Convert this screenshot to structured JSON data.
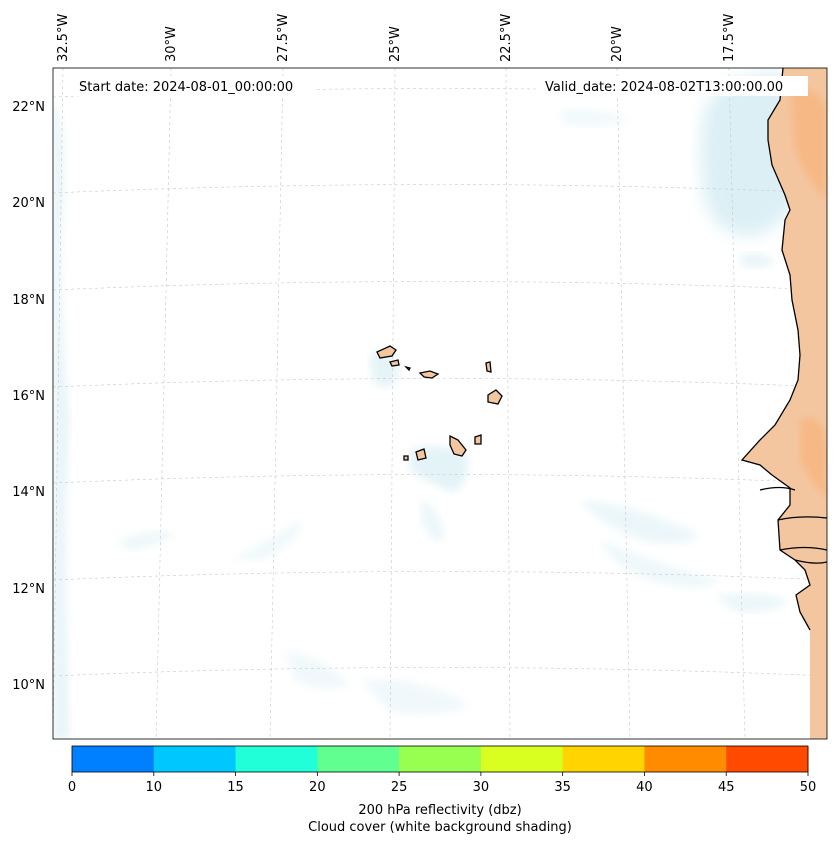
{
  "header": {
    "start_date": "Start date: 2024-08-01_00:00:00",
    "valid_date": "Valid_date: 2024-08-02T13:00:00.00"
  },
  "map": {
    "lon_labels": [
      "32.5°W",
      "30°W",
      "27.5°W",
      "25°W",
      "22.5°W",
      "20°W",
      "17.5°W"
    ],
    "lat_labels": [
      "22°N",
      "20°N",
      "18°N",
      "16°N",
      "14°N",
      "12°N",
      "10°N"
    ],
    "gridlines": "dashed",
    "region": "Cabo Verde and West African coast",
    "colors": {
      "land": "#f4c6a0",
      "cloud": "#d9eef5",
      "coast": "#000000"
    }
  },
  "colorbar": {
    "ticks": [
      "0",
      "10",
      "15",
      "20",
      "25",
      "30",
      "35",
      "40",
      "45",
      "50"
    ],
    "colors": [
      "#0080ff",
      "#00c8ff",
      "#20ffd8",
      "#60ff90",
      "#98ff50",
      "#d8ff20",
      "#ffd400",
      "#ff8c00",
      "#ff4a00"
    ],
    "label_line1": "200 hPa reflectivity (dbz)",
    "label_line2": "Cloud cover (white background shading)"
  }
}
